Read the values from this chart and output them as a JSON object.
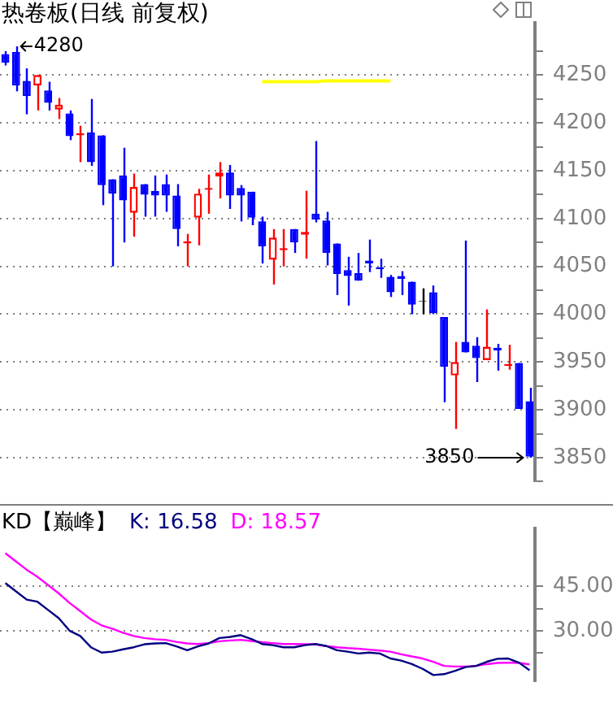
{
  "chart_data": [
    {
      "type": "candlestick",
      "title": "热卷板(日线 前复权)",
      "categories": [
        null,
        null,
        null,
        null,
        null,
        null,
        null,
        null,
        null,
        null,
        null,
        null,
        null,
        null,
        null,
        null,
        null,
        null,
        null,
        null,
        null,
        null,
        null,
        null,
        null,
        null,
        null,
        null,
        null,
        null,
        null,
        null,
        null,
        null,
        null,
        null,
        null,
        null,
        null,
        null,
        null,
        null,
        null,
        null,
        null,
        null,
        null,
        null,
        null,
        null
      ],
      "ohlc": [
        [
          4272,
          4275,
          4260,
          4263
        ],
        [
          4274,
          4280,
          4233,
          4239
        ],
        [
          4244,
          4257,
          4209,
          4228
        ],
        [
          4239,
          4250,
          4213,
          4250
        ],
        [
          4234,
          4243,
          4213,
          4221
        ],
        [
          4214,
          4226,
          4204,
          4219
        ],
        [
          4210,
          4213,
          4182,
          4186
        ],
        [
          4187,
          4197,
          4159,
          4189
        ],
        [
          4190,
          4225,
          4155,
          4159
        ],
        [
          4187,
          4187,
          4114,
          4135
        ],
        [
          4141,
          4141,
          4050,
          4126
        ],
        [
          4145,
          4174,
          4075,
          4119
        ],
        [
          4106,
          4147,
          4081,
          4133
        ],
        [
          4136,
          4136,
          4102,
          4125
        ],
        [
          4129,
          4145,
          4102,
          4124
        ],
        [
          4136,
          4146,
          4107,
          4124
        ],
        [
          4124,
          4136,
          4071,
          4089
        ],
        [
          4074,
          4084,
          4050,
          4076
        ],
        [
          4101,
          4131,
          4072,
          4126
        ],
        [
          4130,
          4146,
          4105,
          4132
        ],
        [
          4144,
          4159,
          4121,
          4148
        ],
        [
          4148,
          4156,
          4110,
          4124
        ],
        [
          4132,
          4135,
          4097,
          4124
        ],
        [
          4128,
          4128,
          4093,
          4101
        ],
        [
          4097,
          4102,
          4053,
          4071
        ],
        [
          4057,
          4089,
          4031,
          4080
        ],
        [
          4067,
          4089,
          4050,
          4069
        ],
        [
          4089,
          4089,
          4064,
          4075
        ],
        [
          4083,
          4129,
          4058,
          4086
        ],
        [
          4105,
          4181,
          4096,
          4099
        ],
        [
          4098,
          4107,
          4051,
          4064
        ],
        [
          4074,
          4074,
          4020,
          4042
        ],
        [
          4046,
          4060,
          4009,
          4040
        ],
        [
          4043,
          4064,
          4035,
          4035
        ],
        [
          4056,
          4078,
          4044,
          4053
        ],
        [
          4049,
          4058,
          4038,
          4047
        ],
        [
          4039,
          4041,
          4018,
          4023
        ],
        [
          4040,
          4045,
          4020,
          4037
        ],
        [
          4034,
          4034,
          4000,
          4010
        ],
        [
          4013,
          4027,
          4000,
          4013
        ],
        [
          4023,
          4030,
          4000,
          4001
        ],
        [
          3997,
          3997,
          3908,
          3945
        ],
        [
          3936,
          3971,
          3880,
          3950
        ],
        [
          3971,
          4077,
          3960,
          3960
        ],
        [
          3967,
          3976,
          3929,
          3954
        ],
        [
          3952,
          4005,
          3952,
          3966
        ],
        [
          3965,
          3969,
          3941,
          3962
        ],
        [
          3946,
          3968,
          3942,
          3948
        ],
        [
          3949,
          3949,
          3901,
          3901
        ],
        [
          3909,
          3923,
          3850,
          3851
        ]
      ],
      "series": [
        {
          "type": "line",
          "color": "#ffff00",
          "values": [
            null,
            null,
            null,
            null,
            null,
            null,
            null,
            null,
            null,
            null,
            null,
            null,
            null,
            null,
            null,
            null,
            null,
            null,
            null,
            null,
            null,
            null,
            null,
            null,
            4243,
            4243,
            4243,
            4243,
            4243,
            4243,
            4244,
            4244,
            4244,
            4244,
            4244,
            4244,
            4244,
            null,
            null,
            null,
            null,
            null,
            null,
            null,
            null,
            null,
            null,
            null,
            null,
            null
          ]
        }
      ],
      "ylim": [
        3825,
        4305
      ],
      "yticks": [
        {
          "value": 3825,
          "label": null
        },
        3850,
        {
          "value": 3875,
          "label": null
        },
        3900,
        {
          "value": 3925,
          "label": null
        },
        3950,
        {
          "value": 3975,
          "label": null
        },
        4000,
        {
          "value": 4025,
          "label": null
        },
        4050,
        {
          "value": 4075,
          "label": null
        },
        4100,
        {
          "value": 4125,
          "label": null
        },
        4150,
        {
          "value": 4175,
          "label": null
        },
        4200,
        {
          "value": 4225,
          "label": null
        },
        4250,
        {
          "value": 4275,
          "label": null
        }
      ],
      "grid": "y",
      "tick_labels": "y",
      "annotations": [
        "4280",
        "3850"
      ]
    },
    {
      "type": "line",
      "title": "KD【巅峰】",
      "categories": [
        null,
        null,
        null,
        null,
        null,
        null,
        null,
        null,
        null,
        null,
        null,
        null,
        null,
        null,
        null,
        null,
        null,
        null,
        null,
        null,
        null,
        null,
        null,
        null,
        null,
        null,
        null,
        null,
        null,
        null,
        null,
        null,
        null,
        null,
        null,
        null,
        null,
        null,
        null,
        null,
        null,
        null,
        null,
        null,
        null,
        null,
        null,
        null,
        null,
        null
      ],
      "series": [
        {
          "name": "K: 16.58",
          "color": "#000080",
          "values": [
            46.1,
            43.3,
            40.5,
            39.8,
            37.0,
            34.2,
            30.0,
            28.2,
            24.4,
            22.6,
            22.9,
            23.7,
            24.4,
            25.4,
            25.7,
            25.8,
            24.7,
            23.4,
            24.7,
            25.7,
            27.5,
            27.9,
            28.5,
            27.2,
            25.5,
            25.1,
            24.4,
            24.4,
            25.1,
            25.5,
            24.8,
            23.4,
            22.9,
            22.3,
            22.6,
            22.3,
            20.6,
            19.9,
            18.7,
            17.1,
            15.0,
            15.3,
            16.4,
            17.7,
            18.1,
            19.5,
            20.5,
            20.6,
            19.2,
            16.6
          ]
        },
        {
          "name": "D: 18.57",
          "color": "#ff00ff",
          "values": [
            56.2,
            53.4,
            50.6,
            48.2,
            45.4,
            42.6,
            39.4,
            36.6,
            33.8,
            31.8,
            30.7,
            29.3,
            28.2,
            27.5,
            27.1,
            26.9,
            26.2,
            25.7,
            25.5,
            25.8,
            26.4,
            26.7,
            26.9,
            26.5,
            26.1,
            25.8,
            25.5,
            25.5,
            25.4,
            25.4,
            24.8,
            24.4,
            24.1,
            23.9,
            23.6,
            23.3,
            22.9,
            22.0,
            21.3,
            20.6,
            19.5,
            18.1,
            17.9,
            17.9,
            18.1,
            18.7,
            19.1,
            19.2,
            19.1,
            18.6
          ]
        }
      ],
      "ylim": [
        12.8,
        64.7
      ],
      "yticks": [
        {
          "value": 22.5,
          "label": null
        },
        {
          "value": 30,
          "label": "30.00"
        },
        {
          "value": 37.5,
          "label": null
        },
        {
          "value": 45,
          "label": "45.00"
        }
      ],
      "grid": "y",
      "tick_labels": "y",
      "legend": "top left",
      "marker": "none",
      "line_style": "solid"
    }
  ]
}
